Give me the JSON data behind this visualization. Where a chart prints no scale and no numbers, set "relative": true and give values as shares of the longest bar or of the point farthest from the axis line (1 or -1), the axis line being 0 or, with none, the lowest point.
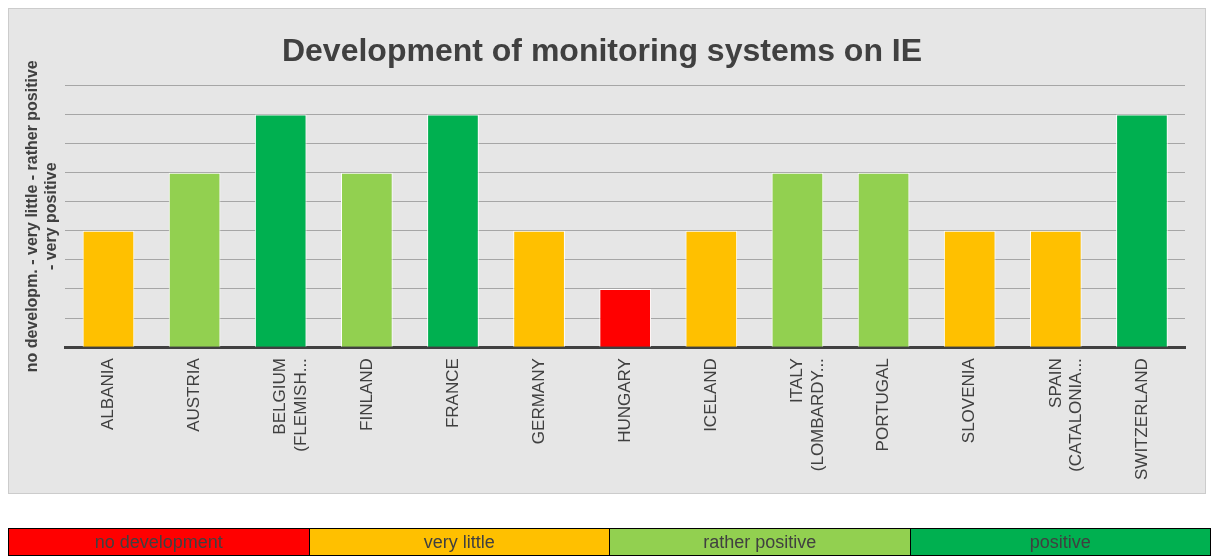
{
  "chart_data": {
    "type": "bar",
    "title": "Development of monitoring systems on IE",
    "ylabel": "no developm. - very little - rather positive - very positive",
    "categories": [
      "ALBANIA",
      "AUSTRIA",
      "BELGIUM (FLEMISH...",
      "FINLAND",
      "FRANCE",
      "GERMANY",
      "HUNGARY",
      "ICELAND",
      "ITALY (LOMBARDY...",
      "PORTUGAL",
      "SLOVENIA",
      "SPAIN (CATALONIA...",
      "SWITZERLAND"
    ],
    "relative": true,
    "stacked": true,
    "grid": "y",
    "legend": "bottom",
    "series": [
      {
        "name": "no development",
        "color": "#ff0000",
        "values": [
          null,
          null,
          null,
          null,
          null,
          null,
          0.25,
          null,
          null,
          null,
          null,
          null,
          null
        ]
      },
      {
        "name": "very little",
        "color": "#ffc000",
        "values": [
          0.5,
          null,
          null,
          null,
          null,
          0.5,
          null,
          0.5,
          null,
          null,
          0.5,
          0.5,
          null
        ]
      },
      {
        "name": "rather positive",
        "color": "#92d050",
        "values": [
          null,
          0.75,
          null,
          0.75,
          null,
          null,
          null,
          null,
          0.75,
          0.75,
          null,
          null,
          null
        ]
      },
      {
        "name": "positive",
        "color": "#00b050",
        "values": [
          null,
          null,
          1,
          null,
          1,
          null,
          null,
          null,
          null,
          null,
          null,
          null,
          1
        ]
      }
    ]
  }
}
